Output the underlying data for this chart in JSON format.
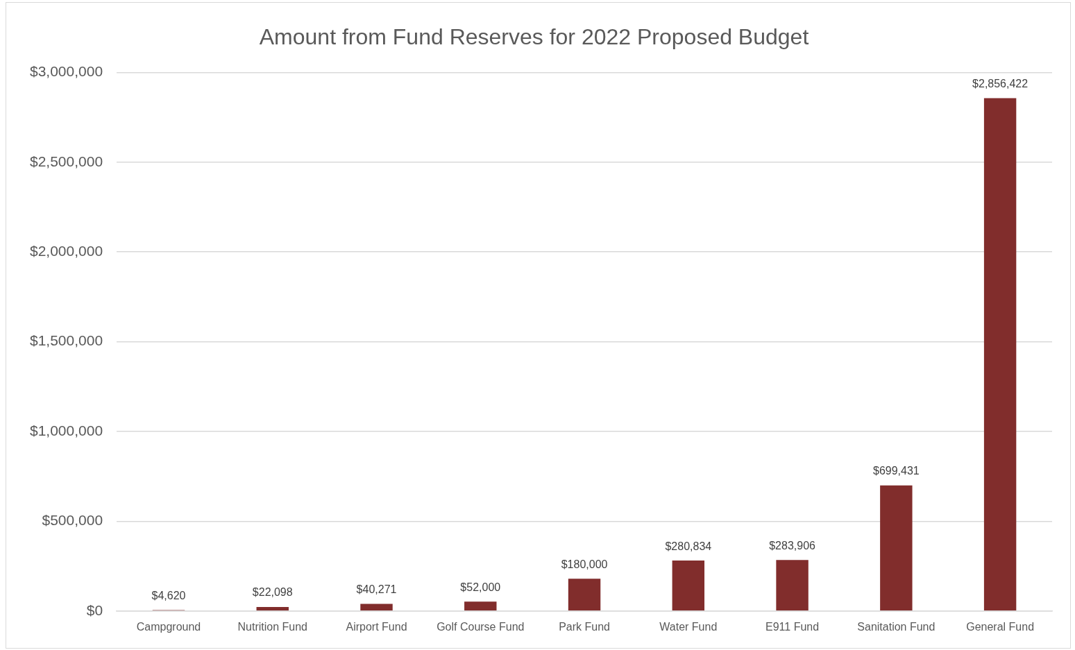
{
  "chart_data": {
    "type": "bar",
    "title": "Amount from Fund Reserves for 2022 Proposed Budget",
    "categories": [
      "Campground",
      "Nutrition Fund",
      "Airport Fund",
      "Golf Course Fund",
      "Park Fund",
      "Water Fund",
      "E911 Fund",
      "Sanitation Fund",
      "General Fund"
    ],
    "values": [
      4620,
      22098,
      40271,
      52000,
      180000,
      280834,
      283906,
      699431,
      2856422
    ],
    "value_labels": [
      "$4,620",
      "$22,098",
      "$40,271",
      "$52,000",
      "$180,000",
      "$280,834",
      "$283,906",
      "$699,431",
      "$2,856,422"
    ],
    "color": "#812d2c",
    "ylim": [
      0,
      3000000
    ],
    "yticks": [
      {
        "value": 0,
        "label": "$0"
      },
      {
        "value": 500000,
        "label": "$500,000"
      },
      {
        "value": 1000000,
        "label": "$1,000,000"
      },
      {
        "value": 1500000,
        "label": "$1,500,000"
      },
      {
        "value": 2000000,
        "label": "$2,000,000"
      },
      {
        "value": 2500000,
        "label": "$2,500,000"
      },
      {
        "value": 3000000,
        "label": "$3,000,000"
      }
    ],
    "grid": "y",
    "legend": false
  }
}
